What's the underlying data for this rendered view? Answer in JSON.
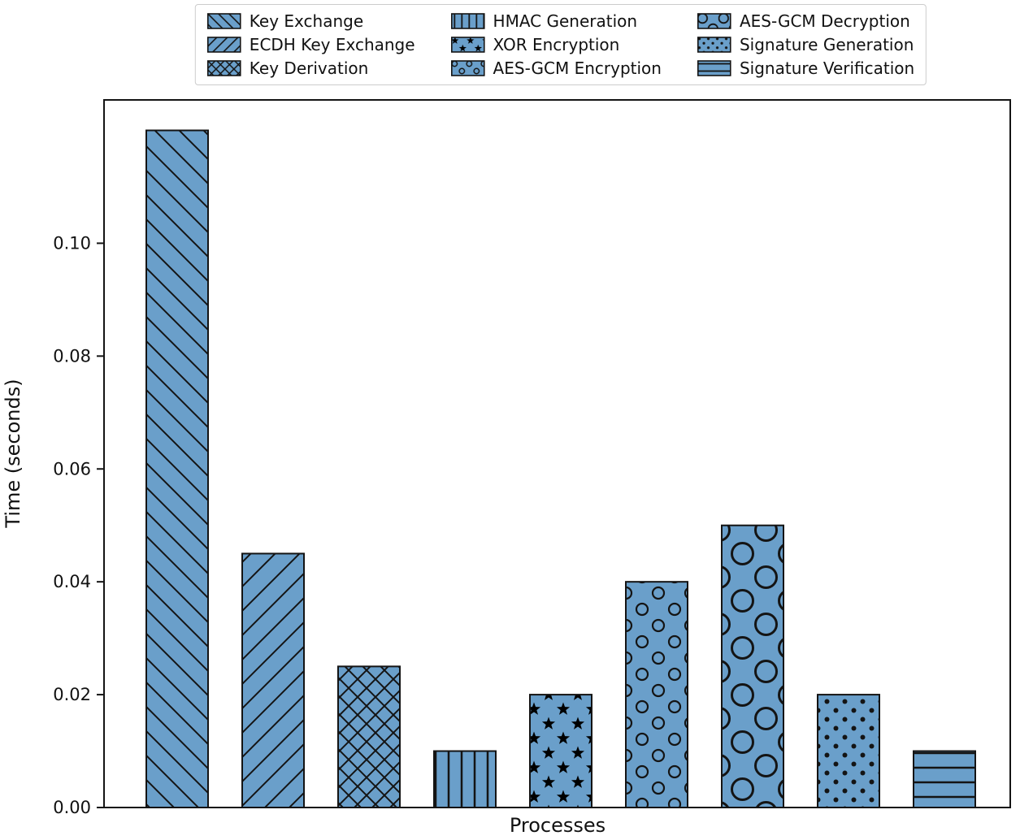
{
  "figure": {
    "background": "#ffffff"
  },
  "chart_data": {
    "type": "bar",
    "title": "",
    "xlabel": "Processes",
    "ylabel": "Time (seconds)",
    "ylim": [
      0,
      0.1254
    ],
    "yticks": [
      0,
      0.02,
      0.04,
      0.06,
      0.08,
      0.1
    ],
    "ytick_format": "2dp",
    "grid": false,
    "legend_position": "top-center",
    "legend_columns": 3,
    "bar_color": "#6a9fca",
    "edge_color": "#141414",
    "series": [
      {
        "name": "Key Exchange",
        "value": 0.12,
        "hatch": "backslash"
      },
      {
        "name": "ECDH Key Exchange",
        "value": 0.045,
        "hatch": "slash"
      },
      {
        "name": "Key Derivation",
        "value": 0.025,
        "hatch": "cross"
      },
      {
        "name": "HMAC Generation",
        "value": 0.01,
        "hatch": "vertical"
      },
      {
        "name": "XOR Encryption",
        "value": 0.02,
        "hatch": "star"
      },
      {
        "name": "AES-GCM Encryption",
        "value": 0.04,
        "hatch": "circle-small"
      },
      {
        "name": "AES-GCM Decryption",
        "value": 0.05,
        "hatch": "circle-large"
      },
      {
        "name": "Signature Generation",
        "value": 0.02,
        "hatch": "dot"
      },
      {
        "name": "Signature Verification",
        "value": 0.01,
        "hatch": "horizontal"
      }
    ]
  }
}
